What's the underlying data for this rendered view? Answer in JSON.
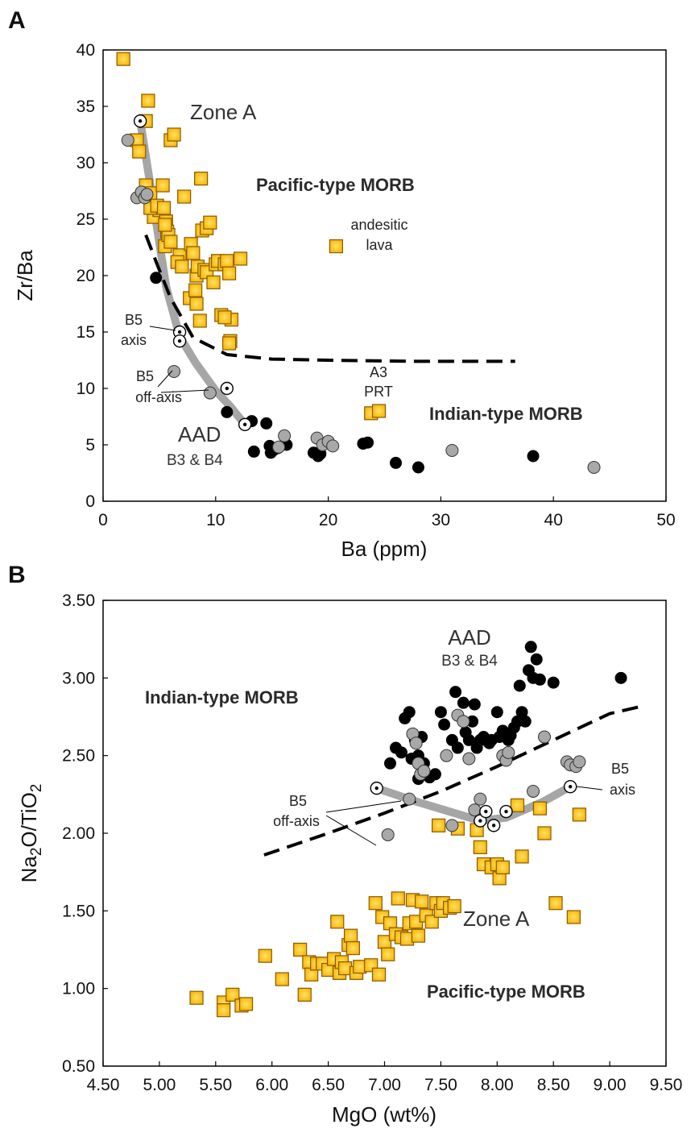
{
  "panels": [
    {
      "letter": "A",
      "xlabel": "Ba (ppm)",
      "ylabel": "Zr/Ba",
      "xticks": [
        "0",
        "10",
        "20",
        "30",
        "40",
        "50"
      ],
      "yticks": [
        "0",
        "5",
        "10",
        "15",
        "20",
        "25",
        "30",
        "35",
        "40"
      ],
      "labels": {
        "region_upper": "Pacific-type MORB",
        "region_lower": "Indian-type MORB",
        "zone": "Zone A",
        "aad": "AAD",
        "aad_sub": "B3 & B4",
        "b5_axis_1": "B5",
        "b5_axis_2": "axis",
        "b5_off_1": "B5",
        "b5_off_2": "off-axis",
        "andesitic_1": "andesitic",
        "andesitic_2": "lava",
        "a3_1": "A3",
        "a3_2": "PRT"
      }
    },
    {
      "letter": "B",
      "xlabel": "MgO (wt%)",
      "ylabel_main": "Na",
      "ylabel_sub": "2",
      "ylabel_mid": "O/TiO",
      "ylabel_sub2": "2",
      "xticks": [
        "4.50",
        "5.00",
        "5.50",
        "6.00",
        "6.50",
        "7.00",
        "7.50",
        "8.00",
        "8.50",
        "9.00",
        "9.50"
      ],
      "yticks": [
        "0.50",
        "1.00",
        "1.50",
        "2.00",
        "2.50",
        "3.00",
        "3.50"
      ],
      "labels": {
        "region_upper": "Indian-type MORB",
        "region_lower": "Pacific-type MORB",
        "zone": "Zone A",
        "aad": "AAD",
        "aad_sub": "B3 & B4",
        "b5_axis_1": "B5",
        "b5_axis_2": "axis",
        "b5_off_1": "B5",
        "b5_off_2": "off-axis"
      }
    }
  ],
  "colors": {
    "square_fill": "#f7b500",
    "square_center": "#ffe066",
    "square_edge": "#8a5a00",
    "black_point": "#000000",
    "gray_point": "#a8a8a8",
    "trend_line": "#a6a6a6",
    "divider": "#000000"
  },
  "chart_data": [
    {
      "type": "scatter",
      "panel": "A",
      "xlim": [
        0,
        50
      ],
      "ylim": [
        0,
        40
      ],
      "grid": false,
      "series": [
        {
          "marker": "square",
          "x": [
            1.8,
            3.0,
            3.2,
            3.8,
            4.0,
            3.8,
            4.2,
            4.5,
            5.0,
            4.2,
            4.8,
            5.3,
            5.4,
            5.6,
            5.7,
            5.5,
            5.8,
            6.0,
            6.3,
            6.0,
            5.5,
            6.8,
            6.6,
            7.0,
            7.2,
            7.8,
            7.7,
            8.0,
            8.3,
            8.2,
            8.3,
            8.6,
            8.8,
            8.4,
            8.7,
            9.0,
            9.2,
            9.5,
            9.2,
            9.8,
            10.0,
            10.2,
            10.5,
            10.8,
            11.0,
            11.2,
            11.4,
            11.3,
            12.2,
            10.8,
            11.2,
            20.7,
            23.8,
            24.5
          ],
          "y": [
            39.2,
            32.0,
            31.0,
            33.7,
            35.5,
            28.0,
            27.3,
            25.2,
            25.8,
            26.0,
            26.2,
            28.0,
            26.0,
            24.8,
            23.9,
            22.6,
            23.6,
            32.0,
            32.5,
            23.0,
            24.5,
            21.8,
            21.2,
            20.8,
            27.0,
            22.8,
            18.0,
            22.0,
            20.0,
            18.7,
            17.5,
            16.0,
            24.0,
            20.8,
            28.6,
            20.5,
            24.2,
            24.7,
            20.3,
            19.4,
            21.0,
            21.3,
            16.5,
            21.0,
            21.3,
            20.2,
            16.1,
            14.2,
            21.5,
            16.3,
            14.0,
            22.6,
            7.8,
            8.0
          ]
        },
        {
          "marker": "black-circle",
          "x": [
            4.7,
            11.0,
            13.2,
            13.4,
            14.5,
            14.8,
            14.9,
            15.1,
            15.5,
            16.3,
            18.7,
            19.1,
            19.3,
            23.1,
            23.5,
            26.0,
            28.0,
            38.2
          ],
          "y": [
            19.8,
            7.9,
            7.1,
            4.4,
            6.9,
            4.9,
            4.3,
            4.5,
            4.7,
            5.0,
            4.3,
            4.0,
            4.2,
            5.1,
            5.2,
            3.4,
            3.0,
            4.0
          ]
        },
        {
          "marker": "gray-circle",
          "x": [
            2.2,
            3.0,
            3.4,
            3.7,
            3.9,
            6.3,
            9.5,
            15.6,
            16.1,
            19.0,
            19.5,
            20.0,
            20.4,
            31.0,
            43.6
          ],
          "y": [
            32.0,
            26.9,
            27.4,
            26.9,
            27.2,
            11.5,
            9.6,
            4.8,
            5.8,
            5.6,
            5.0,
            5.3,
            4.9,
            4.5,
            3.0
          ]
        },
        {
          "marker": "dot-circle",
          "x": [
            3.3,
            6.8,
            6.8,
            11.0,
            12.6
          ],
          "y": [
            33.7,
            15.0,
            14.2,
            10.0,
            6.8
          ]
        }
      ],
      "trend_line": {
        "x": [
          3.3,
          4.6,
          5.6,
          6.8,
          8.2,
          10.0,
          11.3,
          12.6
        ],
        "y": [
          33.7,
          25.5,
          19.0,
          14.6,
          12.3,
          9.8,
          8.4,
          6.8
        ]
      },
      "divider": {
        "x": [
          3.8,
          4.8,
          6.0,
          8.0,
          11.0,
          15.0,
          20.0,
          28.0,
          36.6
        ],
        "y": [
          23.6,
          21.0,
          18.0,
          14.5,
          13.0,
          12.6,
          12.5,
          12.4,
          12.4
        ]
      }
    },
    {
      "type": "scatter",
      "panel": "B",
      "xlim": [
        4.5,
        9.5
      ],
      "ylim": [
        0.5,
        3.5
      ],
      "grid": false,
      "series": [
        {
          "marker": "square",
          "x": [
            5.33,
            5.57,
            5.57,
            5.65,
            5.73,
            5.77,
            5.94,
            6.09,
            6.25,
            6.29,
            6.33,
            6.35,
            6.4,
            6.45,
            6.5,
            6.55,
            6.58,
            6.6,
            6.62,
            6.65,
            6.68,
            6.7,
            6.72,
            6.75,
            6.78,
            6.88,
            6.92,
            6.95,
            6.98,
            7.0,
            7.03,
            7.05,
            7.1,
            7.12,
            7.15,
            7.2,
            7.22,
            7.25,
            7.28,
            7.3,
            7.33,
            7.37,
            7.42,
            7.46,
            7.5,
            7.52,
            7.58,
            7.62,
            7.48,
            7.82,
            7.85,
            7.88,
            7.95,
            8.0,
            8.02,
            8.05,
            8.18,
            8.22,
            8.38,
            8.42,
            8.52,
            8.68,
            8.73,
            7.65
          ],
          "y": [
            0.94,
            0.91,
            0.86,
            0.96,
            0.89,
            0.9,
            1.21,
            1.06,
            1.25,
            0.96,
            1.17,
            1.09,
            1.16,
            1.16,
            1.12,
            1.19,
            1.43,
            1.1,
            1.17,
            1.13,
            1.28,
            1.34,
            1.26,
            1.1,
            1.14,
            1.15,
            1.55,
            1.09,
            1.46,
            1.3,
            1.22,
            1.42,
            1.35,
            1.58,
            1.33,
            1.32,
            1.42,
            1.57,
            1.43,
            1.34,
            1.56,
            1.47,
            1.43,
            1.55,
            1.5,
            1.55,
            1.52,
            1.53,
            2.05,
            2.02,
            1.91,
            1.8,
            1.78,
            1.8,
            1.71,
            1.78,
            2.18,
            1.85,
            2.16,
            2.0,
            1.55,
            1.46,
            2.12,
            2.03
          ]
        },
        {
          "marker": "black-circle",
          "x": [
            7.05,
            7.1,
            7.15,
            7.18,
            7.22,
            7.24,
            7.27,
            7.3,
            7.3,
            7.33,
            7.35,
            7.4,
            7.45,
            7.5,
            7.53,
            7.6,
            7.63,
            7.65,
            7.7,
            7.72,
            7.75,
            7.78,
            7.8,
            7.82,
            7.85,
            7.88,
            7.9,
            7.93,
            7.95,
            8.0,
            8.02,
            8.05,
            8.1,
            8.12,
            8.15,
            8.18,
            8.2,
            8.22,
            8.25,
            8.28,
            8.3,
            8.32,
            8.35,
            8.38,
            8.5,
            9.1
          ],
          "y": [
            2.45,
            2.55,
            2.52,
            2.74,
            2.78,
            2.48,
            2.6,
            2.35,
            2.5,
            2.62,
            2.45,
            2.36,
            2.38,
            2.78,
            2.7,
            2.6,
            2.91,
            2.55,
            2.84,
            2.65,
            2.6,
            2.72,
            2.83,
            2.55,
            2.6,
            2.62,
            2.6,
            2.58,
            2.6,
            2.78,
            2.62,
            2.66,
            2.6,
            2.63,
            2.68,
            2.72,
            2.95,
            2.78,
            2.72,
            3.05,
            3.2,
            3.0,
            3.12,
            2.99,
            2.97,
            3.0
          ]
        },
        {
          "marker": "gray-circle",
          "x": [
            7.03,
            7.22,
            7.25,
            7.28,
            7.3,
            7.32,
            7.35,
            7.55,
            7.6,
            7.65,
            7.7,
            7.75,
            7.8,
            7.85,
            8.05,
            8.08,
            8.1,
            8.32,
            8.42,
            8.62,
            8.65,
            8.7,
            8.73
          ],
          "y": [
            1.99,
            2.22,
            2.64,
            2.58,
            2.45,
            2.38,
            2.4,
            2.5,
            2.05,
            2.76,
            2.72,
            2.48,
            2.15,
            2.22,
            2.5,
            2.47,
            2.52,
            2.27,
            2.62,
            2.46,
            2.44,
            2.43,
            2.46
          ]
        },
        {
          "marker": "dot-circle",
          "x": [
            6.93,
            7.85,
            7.9,
            7.97,
            8.08,
            8.65
          ],
          "y": [
            2.29,
            2.08,
            2.14,
            2.05,
            2.14,
            2.3
          ]
        }
      ],
      "trend_line": {
        "x": [
          6.93,
          7.3,
          7.85,
          8.08,
          8.4,
          8.65
        ],
        "y": [
          2.29,
          2.2,
          2.08,
          2.1,
          2.2,
          2.3
        ]
      },
      "divider": {
        "x": [
          5.93,
          6.5,
          7.0,
          7.5,
          8.0,
          8.5,
          9.0,
          9.3
        ],
        "y": [
          1.86,
          2.0,
          2.13,
          2.27,
          2.43,
          2.6,
          2.77,
          2.82
        ]
      }
    }
  ]
}
